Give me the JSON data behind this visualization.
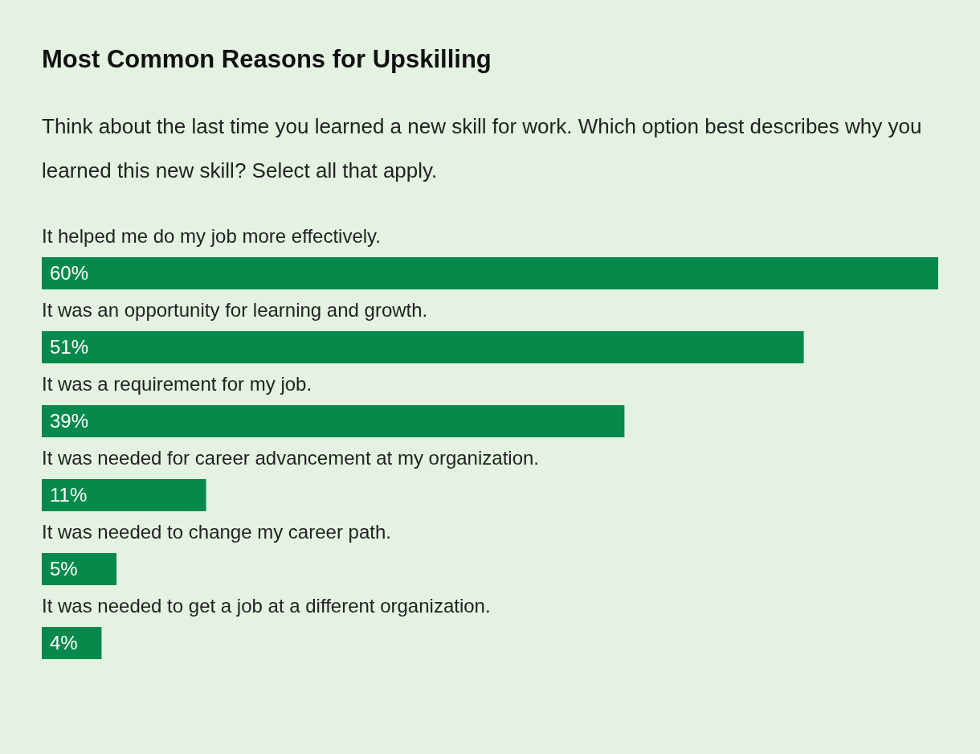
{
  "chart_data": {
    "type": "bar",
    "orientation": "horizontal",
    "title": "Most Common Reasons for Upskilling",
    "subtitle": "Think about the last time you learned a new skill for work. Which option best describes why you learned this new skill? Select all that apply.",
    "categories": [
      "It helped me do my job more effectively.",
      "It was an opportunity for learning and growth.",
      "It was a requirement for my job.",
      "It was needed for career advancement at my organization.",
      "It was needed to change my career path.",
      "It was needed to get a job at a different organization."
    ],
    "values": [
      60,
      51,
      39,
      11,
      5,
      4
    ],
    "value_labels": [
      "60%",
      "51%",
      "39%",
      "11%",
      "5%",
      "4%"
    ],
    "color": "#068a4c"
  }
}
